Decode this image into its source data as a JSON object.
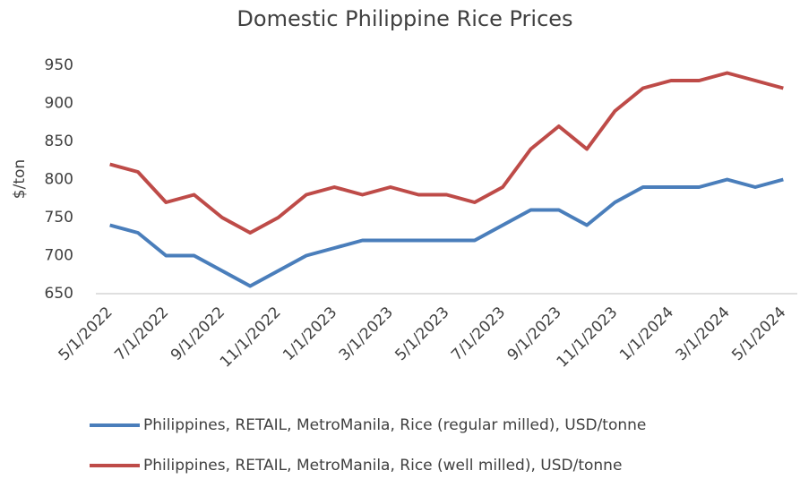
{
  "chart_data": {
    "type": "line",
    "title": "Domestic Philippine Rice Prices",
    "y_label": "$/ton",
    "categories": [
      "5/1/2022",
      null,
      "7/1/2022",
      null,
      "9/1/2022",
      null,
      "11/1/2022",
      null,
      "1/1/2023",
      null,
      "3/1/2023",
      null,
      "5/1/2023",
      null,
      "7/1/2023",
      null,
      "9/1/2023",
      null,
      "11/1/2023",
      null,
      "1/1/2024",
      null,
      "3/1/2024",
      null,
      "5/1/2024"
    ],
    "series": [
      {
        "name": "Philippines, RETAIL, MetroManila, Rice (regular milled), USD/tonne",
        "color": "#4a7ebb",
        "values": [
          740,
          730,
          700,
          700,
          680,
          660,
          680,
          700,
          710,
          720,
          720,
          720,
          720,
          720,
          740,
          760,
          760,
          740,
          770,
          790,
          790,
          790,
          800,
          790,
          800
        ]
      },
      {
        "name": "Philippines, RETAIL, MetroManila, Rice (well milled), USD/tonne",
        "color": "#be4b48",
        "values": [
          820,
          810,
          770,
          780,
          750,
          730,
          750,
          780,
          790,
          780,
          790,
          780,
          780,
          770,
          790,
          840,
          870,
          840,
          890,
          920,
          930,
          930,
          940,
          930,
          920
        ]
      }
    ],
    "ylim": [
      650,
      950
    ],
    "yticks": [
      650,
      700,
      750,
      800,
      850,
      900,
      950
    ],
    "grid": false,
    "legend": "bottom"
  }
}
